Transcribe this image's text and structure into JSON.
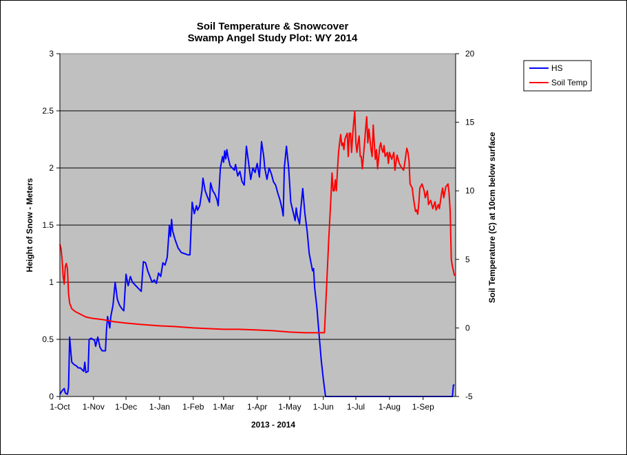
{
  "chart_data": {
    "type": "line",
    "title": "Soil Temperature & Snowcover",
    "subtitle": "Swamp Angel Study Plot: WY 2014",
    "xlabel": "2013 - 2014",
    "ylabel_left": "Height of Snow - Meters",
    "ylabel_right": "Soil Temperature (C) at 10cm below surface",
    "x_range": [
      "2013-10-01",
      "2014-09-30"
    ],
    "ylim_left": [
      0,
      3
    ],
    "ylim_right": [
      -5,
      20
    ],
    "yticks_left": [
      "0",
      "0.5",
      "1",
      "1.5",
      "2",
      "2.5",
      "3"
    ],
    "yticks_right": [
      "-5",
      "0",
      "5",
      "10",
      "15",
      "20"
    ],
    "xticks": [
      {
        "label": "1-Oct",
        "date": "2013-10-01"
      },
      {
        "label": "1-Nov",
        "date": "2013-11-01"
      },
      {
        "label": "1-Dec",
        "date": "2013-12-01"
      },
      {
        "label": "1-Jan",
        "date": "2014-01-01"
      },
      {
        "label": "1-Feb",
        "date": "2014-02-01"
      },
      {
        "label": "1-Mar",
        "date": "2014-03-01"
      },
      {
        "label": "1-Apr",
        "date": "2014-04-01"
      },
      {
        "label": "1-May",
        "date": "2014-05-01"
      },
      {
        "label": "1-Jun",
        "date": "2014-06-01"
      },
      {
        "label": "1-Jul",
        "date": "2014-07-01"
      },
      {
        "label": "1-Aug",
        "date": "2014-08-01"
      },
      {
        "label": "1-Sep",
        "date": "2014-09-01"
      }
    ],
    "grid": "horizontal",
    "plot_background": "#c0c0c0",
    "legend_position": "right",
    "series": [
      {
        "name": "HS",
        "axis": "left",
        "color": "#0000ff",
        "points": [
          [
            "2013-10-01",
            0.02
          ],
          [
            "2013-10-03",
            0.05
          ],
          [
            "2013-10-05",
            0.07
          ],
          [
            "2013-10-06",
            0.03
          ],
          [
            "2013-10-08",
            0.02
          ],
          [
            "2013-10-09",
            0.08
          ],
          [
            "2013-10-10",
            0.52
          ],
          [
            "2013-10-11",
            0.4
          ],
          [
            "2013-10-12",
            0.3
          ],
          [
            "2013-10-14",
            0.28
          ],
          [
            "2013-10-16",
            0.27
          ],
          [
            "2013-10-18",
            0.25
          ],
          [
            "2013-10-20",
            0.25
          ],
          [
            "2013-10-23",
            0.22
          ],
          [
            "2013-10-24",
            0.3
          ],
          [
            "2013-10-25",
            0.21
          ],
          [
            "2013-10-27",
            0.22
          ],
          [
            "2013-10-28",
            0.5
          ],
          [
            "2013-10-30",
            0.51
          ],
          [
            "2013-11-02",
            0.49
          ],
          [
            "2013-11-03",
            0.44
          ],
          [
            "2013-11-05",
            0.52
          ],
          [
            "2013-11-07",
            0.43
          ],
          [
            "2013-11-09",
            0.4
          ],
          [
            "2013-11-12",
            0.4
          ],
          [
            "2013-11-13",
            0.58
          ],
          [
            "2013-11-14",
            0.7
          ],
          [
            "2013-11-15",
            0.65
          ],
          [
            "2013-11-16",
            0.6
          ],
          [
            "2013-11-17",
            0.7
          ],
          [
            "2013-11-19",
            0.8
          ],
          [
            "2013-11-21",
            1.0
          ],
          [
            "2013-11-23",
            0.85
          ],
          [
            "2013-11-25",
            0.8
          ],
          [
            "2013-11-27",
            0.77
          ],
          [
            "2013-11-29",
            0.75
          ],
          [
            "2013-12-01",
            1.07
          ],
          [
            "2013-12-03",
            0.97
          ],
          [
            "2013-12-05",
            1.05
          ],
          [
            "2013-12-07",
            1.0
          ],
          [
            "2013-12-10",
            0.97
          ],
          [
            "2013-12-13",
            0.94
          ],
          [
            "2013-12-15",
            0.92
          ],
          [
            "2013-12-17",
            1.18
          ],
          [
            "2013-12-19",
            1.17
          ],
          [
            "2013-12-21",
            1.1
          ],
          [
            "2013-12-23",
            1.05
          ],
          [
            "2013-12-25",
            1.0
          ],
          [
            "2013-12-27",
            1.02
          ],
          [
            "2013-12-29",
            0.99
          ],
          [
            "2013-12-31",
            1.08
          ],
          [
            "2014-01-02",
            1.05
          ],
          [
            "2014-01-04",
            1.17
          ],
          [
            "2014-01-06",
            1.15
          ],
          [
            "2014-01-08",
            1.22
          ],
          [
            "2014-01-09",
            1.35
          ],
          [
            "2014-01-10",
            1.5
          ],
          [
            "2014-01-11",
            1.4
          ],
          [
            "2014-01-12",
            1.55
          ],
          [
            "2014-01-13",
            1.45
          ],
          [
            "2014-01-15",
            1.38
          ],
          [
            "2014-01-18",
            1.3
          ],
          [
            "2014-01-21",
            1.26
          ],
          [
            "2014-01-24",
            1.25
          ],
          [
            "2014-01-27",
            1.24
          ],
          [
            "2014-01-29",
            1.24
          ],
          [
            "2014-01-31",
            1.7
          ],
          [
            "2014-02-02",
            1.6
          ],
          [
            "2014-02-04",
            1.67
          ],
          [
            "2014-02-05",
            1.63
          ],
          [
            "2014-02-07",
            1.67
          ],
          [
            "2014-02-09",
            1.8
          ],
          [
            "2014-02-10",
            1.91
          ],
          [
            "2014-02-12",
            1.8
          ],
          [
            "2014-02-14",
            1.75
          ],
          [
            "2014-02-16",
            1.7
          ],
          [
            "2014-02-17",
            1.87
          ],
          [
            "2014-02-19",
            1.8
          ],
          [
            "2014-02-21",
            1.77
          ],
          [
            "2014-02-23",
            1.72
          ],
          [
            "2014-02-24",
            1.67
          ],
          [
            "2014-02-26",
            2.0
          ],
          [
            "2014-02-28",
            2.1
          ],
          [
            "2014-03-01",
            2.05
          ],
          [
            "2014-03-02",
            2.15
          ],
          [
            "2014-03-03",
            2.08
          ],
          [
            "2014-03-04",
            2.16
          ],
          [
            "2014-03-05",
            2.1
          ],
          [
            "2014-03-07",
            2.02
          ],
          [
            "2014-03-09",
            2.0
          ],
          [
            "2014-03-11",
            1.98
          ],
          [
            "2014-03-12",
            2.03
          ],
          [
            "2014-03-14",
            1.93
          ],
          [
            "2014-03-16",
            1.97
          ],
          [
            "2014-03-18",
            1.88
          ],
          [
            "2014-03-20",
            1.85
          ],
          [
            "2014-03-22",
            2.19
          ],
          [
            "2014-03-24",
            2.05
          ],
          [
            "2014-03-26",
            1.9
          ],
          [
            "2014-03-28",
            2.0
          ],
          [
            "2014-03-30",
            1.96
          ],
          [
            "2014-04-01",
            2.04
          ],
          [
            "2014-04-03",
            1.92
          ],
          [
            "2014-04-05",
            2.23
          ],
          [
            "2014-04-07",
            2.1
          ],
          [
            "2014-04-08",
            2.0
          ],
          [
            "2014-04-10",
            1.9
          ],
          [
            "2014-04-12",
            2.0
          ],
          [
            "2014-04-14",
            1.95
          ],
          [
            "2014-04-16",
            1.88
          ],
          [
            "2014-04-18",
            1.85
          ],
          [
            "2014-04-20",
            1.78
          ],
          [
            "2014-04-22",
            1.72
          ],
          [
            "2014-04-24",
            1.64
          ],
          [
            "2014-04-25",
            1.58
          ],
          [
            "2014-04-26",
            2.0
          ],
          [
            "2014-04-28",
            2.19
          ],
          [
            "2014-04-30",
            2.0
          ],
          [
            "2014-05-02",
            1.7
          ],
          [
            "2014-05-04",
            1.62
          ],
          [
            "2014-05-06",
            1.54
          ],
          [
            "2014-05-07",
            1.65
          ],
          [
            "2014-05-08",
            1.58
          ],
          [
            "2014-05-10",
            1.51
          ],
          [
            "2014-05-11",
            1.62
          ],
          [
            "2014-05-13",
            1.82
          ],
          [
            "2014-05-15",
            1.6
          ],
          [
            "2014-05-17",
            1.45
          ],
          [
            "2014-05-19",
            1.25
          ],
          [
            "2014-05-21",
            1.15
          ],
          [
            "2014-05-22",
            1.1
          ],
          [
            "2014-05-23",
            1.12
          ],
          [
            "2014-05-24",
            0.95
          ],
          [
            "2014-05-26",
            0.78
          ],
          [
            "2014-05-28",
            0.55
          ],
          [
            "2014-05-30",
            0.32
          ],
          [
            "2014-06-01",
            0.15
          ],
          [
            "2014-06-03",
            0.0
          ],
          [
            "2014-09-28",
            0.0
          ],
          [
            "2014-09-29",
            0.1
          ],
          [
            "2014-09-30",
            0.1
          ]
        ]
      },
      {
        "name": "Soil Temp",
        "axis": "right",
        "color": "#ff0000",
        "points": [
          [
            "2013-10-01",
            6.1
          ],
          [
            "2013-10-02",
            5.8
          ],
          [
            "2013-10-03",
            5.0
          ],
          [
            "2013-10-04",
            3.8
          ],
          [
            "2013-10-05",
            3.2
          ],
          [
            "2013-10-06",
            4.5
          ],
          [
            "2013-10-07",
            4.7
          ],
          [
            "2013-10-08",
            4.3
          ],
          [
            "2013-10-09",
            2.5
          ],
          [
            "2013-10-10",
            1.8
          ],
          [
            "2013-10-12",
            1.4
          ],
          [
            "2013-10-15",
            1.2
          ],
          [
            "2013-10-20",
            1.0
          ],
          [
            "2013-10-25",
            0.8
          ],
          [
            "2013-10-31",
            0.7
          ],
          [
            "2013-11-10",
            0.6
          ],
          [
            "2013-11-20",
            0.45
          ],
          [
            "2013-12-01",
            0.35
          ],
          [
            "2013-12-15",
            0.25
          ],
          [
            "2014-01-01",
            0.15
          ],
          [
            "2014-01-15",
            0.1
          ],
          [
            "2014-02-01",
            0.0
          ],
          [
            "2014-02-15",
            -0.05
          ],
          [
            "2014-03-01",
            -0.1
          ],
          [
            "2014-03-15",
            -0.1
          ],
          [
            "2014-04-01",
            -0.15
          ],
          [
            "2014-04-15",
            -0.2
          ],
          [
            "2014-05-01",
            -0.3
          ],
          [
            "2014-05-15",
            -0.35
          ],
          [
            "2014-05-30",
            -0.35
          ],
          [
            "2014-06-02",
            -0.35
          ],
          [
            "2014-06-04",
            3.0
          ],
          [
            "2014-06-06",
            6.5
          ],
          [
            "2014-06-08",
            9.5
          ],
          [
            "2014-06-09",
            11.3
          ],
          [
            "2014-06-10",
            10.0
          ],
          [
            "2014-06-11",
            10.0
          ],
          [
            "2014-06-12",
            10.8
          ],
          [
            "2014-06-13",
            10.0
          ],
          [
            "2014-06-14",
            11.5
          ],
          [
            "2014-06-15",
            12.8
          ],
          [
            "2014-06-16",
            13.5
          ],
          [
            "2014-06-17",
            14.1
          ],
          [
            "2014-06-18",
            13.3
          ],
          [
            "2014-06-19",
            13.5
          ],
          [
            "2014-06-20",
            13.0
          ],
          [
            "2014-06-21",
            13.8
          ],
          [
            "2014-06-23",
            14.2
          ],
          [
            "2014-06-24",
            12.5
          ],
          [
            "2014-06-25",
            14.2
          ],
          [
            "2014-06-26",
            14.2
          ],
          [
            "2014-06-27",
            12.8
          ],
          [
            "2014-06-28",
            14.0
          ],
          [
            "2014-06-29",
            15.0
          ],
          [
            "2014-06-30",
            15.8
          ],
          [
            "2014-07-01",
            13.5
          ],
          [
            "2014-07-02",
            12.8
          ],
          [
            "2014-07-03",
            13.5
          ],
          [
            "2014-07-04",
            14.0
          ],
          [
            "2014-07-05",
            12.5
          ],
          [
            "2014-07-06",
            12.5
          ],
          [
            "2014-07-07",
            11.6
          ],
          [
            "2014-07-09",
            13.5
          ],
          [
            "2014-07-10",
            14.5
          ],
          [
            "2014-07-11",
            15.4
          ],
          [
            "2014-07-12",
            13.5
          ],
          [
            "2014-07-13",
            14.5
          ],
          [
            "2014-07-15",
            13.0
          ],
          [
            "2014-07-16",
            12.5
          ],
          [
            "2014-07-17",
            14.8
          ],
          [
            "2014-07-18",
            13.5
          ],
          [
            "2014-07-19",
            12.3
          ],
          [
            "2014-07-20",
            13.0
          ],
          [
            "2014-07-21",
            11.6
          ],
          [
            "2014-07-23",
            13.2
          ],
          [
            "2014-07-24",
            13.5
          ],
          [
            "2014-07-25",
            13.0
          ],
          [
            "2014-07-26",
            12.8
          ],
          [
            "2014-07-27",
            13.3
          ],
          [
            "2014-07-28",
            12.5
          ],
          [
            "2014-07-30",
            12.8
          ],
          [
            "2014-07-31",
            12.0
          ],
          [
            "2014-08-01",
            12.8
          ],
          [
            "2014-08-03",
            12.3
          ],
          [
            "2014-08-05",
            12.8
          ],
          [
            "2014-08-06",
            11.5
          ],
          [
            "2014-08-08",
            12.6
          ],
          [
            "2014-08-10",
            12.0
          ],
          [
            "2014-08-12",
            11.7
          ],
          [
            "2014-08-14",
            11.5
          ],
          [
            "2014-08-15",
            12.0
          ],
          [
            "2014-08-17",
            13.1
          ],
          [
            "2014-08-18",
            12.8
          ],
          [
            "2014-08-19",
            12.2
          ],
          [
            "2014-08-20",
            10.5
          ],
          [
            "2014-08-22",
            10.2
          ],
          [
            "2014-08-23",
            9.5
          ],
          [
            "2014-08-25",
            8.5
          ],
          [
            "2014-08-26",
            8.6
          ],
          [
            "2014-08-27",
            8.3
          ],
          [
            "2014-08-28",
            9.0
          ],
          [
            "2014-08-29",
            10.2
          ],
          [
            "2014-08-31",
            10.5
          ],
          [
            "2014-09-02",
            10.0
          ],
          [
            "2014-09-03",
            9.5
          ],
          [
            "2014-09-05",
            10.0
          ],
          [
            "2014-09-06",
            9.0
          ],
          [
            "2014-09-08",
            9.3
          ],
          [
            "2014-09-10",
            8.7
          ],
          [
            "2014-09-12",
            9.2
          ],
          [
            "2014-09-13",
            8.6
          ],
          [
            "2014-09-15",
            9.0
          ],
          [
            "2014-09-16",
            8.7
          ],
          [
            "2014-09-18",
            9.8
          ],
          [
            "2014-09-19",
            10.2
          ],
          [
            "2014-09-20",
            9.5
          ],
          [
            "2014-09-22",
            10.3
          ],
          [
            "2014-09-24",
            10.5
          ],
          [
            "2014-09-25",
            9.8
          ],
          [
            "2014-09-26",
            8.5
          ],
          [
            "2014-09-27",
            5.0
          ],
          [
            "2014-09-28",
            4.5
          ],
          [
            "2014-09-30",
            3.8
          ]
        ]
      }
    ]
  }
}
